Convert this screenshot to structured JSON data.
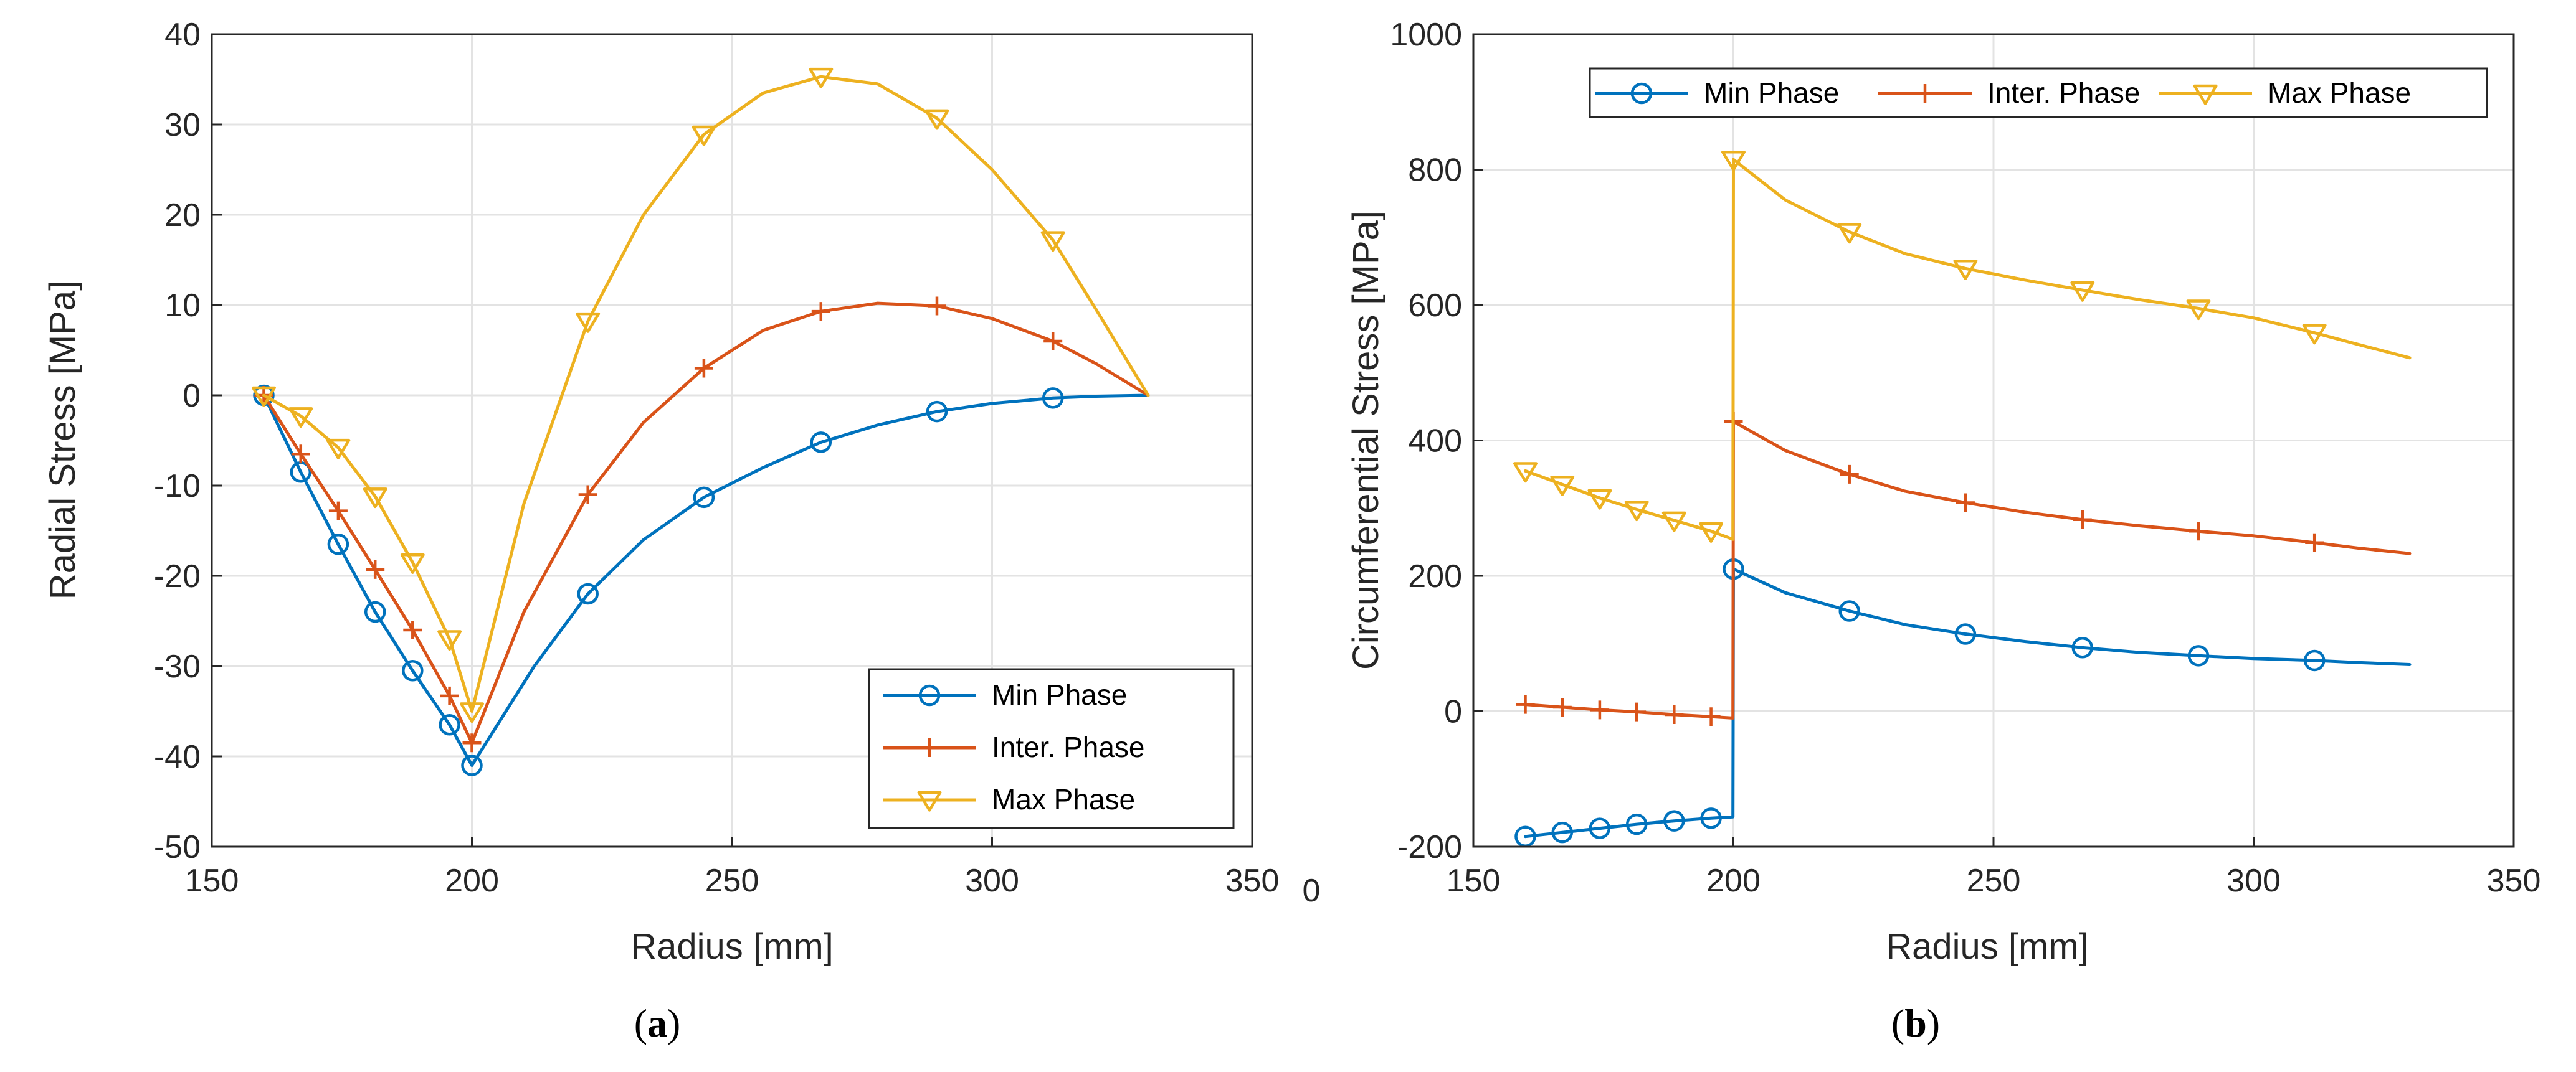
{
  "stray_tick": "0",
  "chart_data": [
    {
      "type": "line",
      "caption": {
        "open": "(",
        "letter": "a",
        "close": ")"
      },
      "xlabel": "Radius [mm]",
      "ylabel": "Radial Stress [MPa]",
      "xlim": [
        150,
        350
      ],
      "ylim": [
        -50,
        40
      ],
      "xticks": [
        150,
        200,
        250,
        300,
        350
      ],
      "yticks": [
        -50,
        -40,
        -30,
        -20,
        -10,
        0,
        10,
        20,
        30,
        40
      ],
      "xtick_labels": [
        "150",
        "200",
        "250",
        "300",
        "350"
      ],
      "ytick_labels": [
        "-50",
        "-40",
        "-30",
        "-20",
        "-10",
        "0",
        "10",
        "20",
        "30",
        "40"
      ],
      "grid": true,
      "legend": {
        "position": "bottom-right",
        "entries": [
          "Min Phase",
          "Inter. Phase",
          "Max Phase"
        ]
      },
      "series": [
        {
          "name": "Min Phase",
          "color": "#0072BD",
          "marker": "circle",
          "x": [
            160,
            167.1,
            174.3,
            181.4,
            188.6,
            195.7,
            200,
            212,
            222.3,
            233,
            244.6,
            256,
            267.1,
            278,
            289.4,
            300,
            311.7,
            320,
            330
          ],
          "y": [
            0,
            -8.5,
            -16.5,
            -24,
            -30.5,
            -36.5,
            -41,
            -30,
            -22,
            -16,
            -11.3,
            -8,
            -5.2,
            -3.3,
            -1.8,
            -0.9,
            -0.3,
            -0.1,
            0
          ],
          "markers_x": [
            160,
            167.1,
            174.3,
            181.4,
            188.6,
            195.7,
            200,
            222.3,
            244.6,
            267.1,
            289.4,
            311.7
          ],
          "markers_y": [
            0,
            -8.5,
            -16.5,
            -24,
            -30.5,
            -36.5,
            -41,
            -22,
            -11.3,
            -5.2,
            -1.8,
            -0.3
          ]
        },
        {
          "name": "Inter. Phase",
          "color": "#D95319",
          "marker": "plus",
          "x": [
            160,
            167.1,
            174.3,
            181.4,
            188.6,
            195.7,
            200,
            210,
            222.3,
            233,
            244.6,
            256,
            267.1,
            278,
            289.4,
            300,
            311.7,
            320,
            330
          ],
          "y": [
            0,
            -6.5,
            -12.8,
            -19.3,
            -26,
            -33.3,
            -38.5,
            -24,
            -11,
            -3,
            3,
            7.2,
            9.3,
            10.2,
            9.9,
            8.5,
            6,
            3.5,
            0
          ],
          "markers_x": [
            160,
            167.1,
            174.3,
            181.4,
            188.6,
            195.7,
            200,
            222.3,
            244.6,
            267.1,
            289.4,
            311.7
          ],
          "markers_y": [
            0,
            -6.5,
            -12.8,
            -19.3,
            -26,
            -33.3,
            -38.5,
            -11,
            3,
            9.3,
            9.9,
            6
          ]
        },
        {
          "name": "Max Phase",
          "color": "#EDB120",
          "marker": "triangle-down",
          "x": [
            160,
            167.1,
            174.3,
            181.4,
            188.6,
            195.7,
            200,
            210,
            222.3,
            233,
            244.6,
            256,
            267.1,
            278,
            289.4,
            300,
            311.7,
            320,
            330
          ],
          "y": [
            0,
            -2.3,
            -5.8,
            -11.2,
            -18.5,
            -27,
            -35,
            -12,
            8.2,
            20,
            28.9,
            33.5,
            35.3,
            34.5,
            30.7,
            25,
            17.2,
            9.5,
            0
          ],
          "markers_x": [
            160,
            167.1,
            174.3,
            181.4,
            188.6,
            195.7,
            200,
            222.3,
            244.6,
            267.1,
            289.4,
            311.7
          ],
          "markers_y": [
            0,
            -2.3,
            -5.8,
            -11.2,
            -18.5,
            -27,
            -35,
            8.2,
            28.9,
            35.3,
            30.7,
            17.2
          ]
        }
      ]
    },
    {
      "type": "line",
      "caption": {
        "open": "(",
        "letter": "b",
        "close": ")"
      },
      "xlabel": "Radius [mm]",
      "ylabel": "Circumferential Stress [MPa]",
      "xlim": [
        150,
        350
      ],
      "ylim": [
        -200,
        1000
      ],
      "xticks": [
        150,
        200,
        250,
        300,
        350
      ],
      "yticks": [
        -200,
        0,
        200,
        400,
        600,
        800,
        1000
      ],
      "xtick_labels": [
        "150",
        "200",
        "250",
        "300",
        "350"
      ],
      "ytick_labels": [
        "-200",
        "0",
        "200",
        "400",
        "600",
        "800",
        "1000"
      ],
      "grid": true,
      "legend": {
        "position": "top",
        "entries": [
          "Min Phase",
          "Inter. Phase",
          "Max Phase"
        ]
      },
      "series": [
        {
          "name": "Min Phase",
          "color": "#0072BD",
          "marker": "circle",
          "x": [
            160,
            167.1,
            174.3,
            181.4,
            188.6,
            195.7,
            199.9,
            200,
            210,
            222.3,
            233,
            244.6,
            256,
            267.1,
            278,
            289.4,
            300,
            311.7,
            320,
            330
          ],
          "y": [
            -185,
            -179,
            -173,
            -167,
            -162,
            -158,
            -156,
            210,
            175,
            148,
            128,
            114,
            103,
            94,
            87,
            82,
            78,
            75,
            72,
            69
          ],
          "markers_x": [
            160,
            167.1,
            174.3,
            181.4,
            188.6,
            195.7,
            200,
            222.3,
            244.6,
            267.1,
            289.4,
            311.7
          ],
          "markers_y": [
            -185,
            -179,
            -173,
            -167,
            -162,
            -158,
            210,
            148,
            114,
            94,
            82,
            75
          ]
        },
        {
          "name": "Inter. Phase",
          "color": "#D95319",
          "marker": "plus",
          "x": [
            160,
            167.1,
            174.3,
            181.4,
            188.6,
            195.7,
            199.9,
            200,
            210,
            222.3,
            233,
            244.6,
            256,
            267.1,
            278,
            289.4,
            300,
            311.7,
            320,
            330
          ],
          "y": [
            10,
            6,
            2,
            -1,
            -5,
            -8,
            -10,
            428,
            385,
            350,
            325,
            308,
            294,
            283,
            274,
            266,
            259,
            249,
            241,
            233
          ],
          "markers_x": [
            160,
            167.1,
            174.3,
            181.4,
            188.6,
            195.7,
            200,
            222.3,
            244.6,
            267.1,
            289.4,
            311.7
          ],
          "markers_y": [
            10,
            6,
            2,
            -1,
            -5,
            -8,
            428,
            350,
            308,
            283,
            266,
            249
          ]
        },
        {
          "name": "Max Phase",
          "color": "#EDB120",
          "marker": "triangle-down",
          "x": [
            160,
            167.1,
            174.3,
            181.4,
            188.6,
            195.7,
            199.9,
            200,
            210,
            222.3,
            233,
            244.6,
            256,
            267.1,
            278,
            289.4,
            300,
            311.7,
            320,
            330
          ],
          "y": [
            355,
            335,
            315,
            298,
            282,
            266,
            254,
            815,
            755,
            708,
            676,
            654,
            637,
            622,
            608,
            595,
            581,
            559,
            542,
            522
          ],
          "markers_x": [
            160,
            167.1,
            174.3,
            181.4,
            188.6,
            195.7,
            200,
            222.3,
            244.6,
            267.1,
            289.4,
            311.7
          ],
          "markers_y": [
            355,
            335,
            315,
            298,
            282,
            266,
            815,
            708,
            654,
            622,
            595,
            559
          ]
        }
      ]
    }
  ]
}
